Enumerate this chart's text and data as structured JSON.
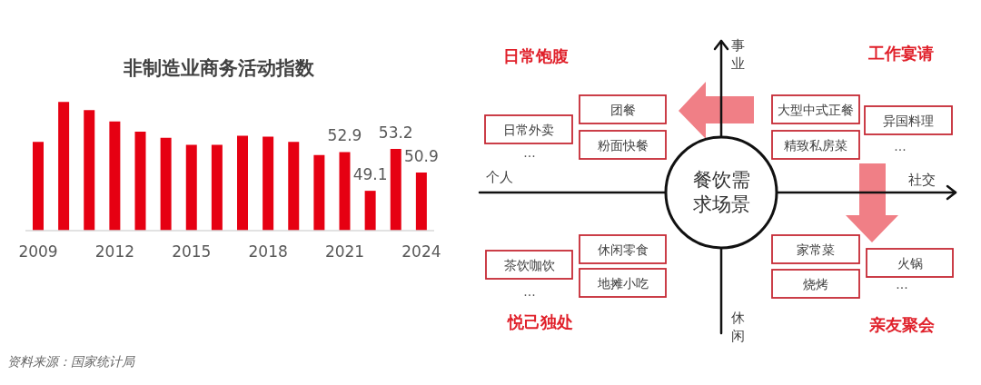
{
  "chart_data": [
    {
      "type": "bar",
      "title": "非制造业商务活动指数",
      "categories": [
        "2009",
        null,
        null,
        "2012",
        null,
        null,
        "2015",
        null,
        null,
        "2018",
        null,
        null,
        "2021",
        null,
        null,
        "2024"
      ],
      "values": [
        53.9,
        57.8,
        57.0,
        55.9,
        54.9,
        54.3,
        53.6,
        53.6,
        54.5,
        54.4,
        53.9,
        52.6,
        52.9,
        49.1,
        53.2,
        50.9
      ],
      "value_labels": [
        null,
        null,
        null,
        null,
        null,
        null,
        null,
        null,
        null,
        null,
        null,
        null,
        "52.9",
        "49.1",
        "53.2",
        "50.9"
      ],
      "color": "#e60012",
      "ylim": [
        45.2,
        58
      ],
      "tick_labels": "x",
      "annotations": [
        "资料来源：国家统计局"
      ]
    },
    {
      "type": "other",
      "title": "餐饮需求场景",
      "annotations": [
        "事业",
        "休闲",
        "个人",
        "社交",
        "日常饱腹",
        "工作宴请",
        "悦己独处",
        "亲友聚会",
        "团餐",
        "粉面快餐",
        "日常外卖",
        "大型中式正餐",
        "精致私房菜",
        "异国料理",
        "休闲零食",
        "地摊小吃",
        "茶饮咖饮",
        "家常菜",
        "烧烤",
        "火锅",
        "...",
        "...",
        "...",
        "..."
      ]
    }
  ]
}
